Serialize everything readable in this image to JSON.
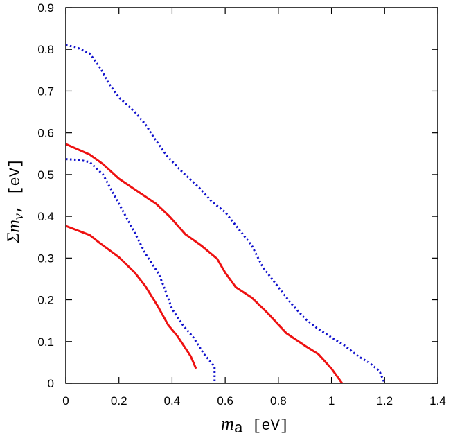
{
  "chart_data": {
    "type": "line",
    "xlabel": {
      "math": "m",
      "sub": "a",
      "unit": " [eV]"
    },
    "ylabel": {
      "math": "Σm",
      "sub": "ν",
      "unit": ", [eV]"
    },
    "xlim": [
      0,
      1.4
    ],
    "ylim": [
      0,
      0.9
    ],
    "xticks": [
      0,
      0.2,
      0.4,
      0.6,
      0.8,
      1,
      1.2,
      1.4
    ],
    "xtick_labels": [
      "0",
      "0.2",
      "0.4",
      "0.6",
      "0.8",
      "1",
      "1.2",
      "1.4"
    ],
    "yticks": [
      0,
      0.1,
      0.2,
      0.3,
      0.4,
      0.5,
      0.6,
      0.7,
      0.8,
      0.9
    ],
    "ytick_labels": [
      "0",
      "0.1",
      "0.2",
      "0.3",
      "0.4",
      "0.5",
      "0.6",
      "0.7",
      "0.8",
      "0.9"
    ],
    "grid": false,
    "legend": "none",
    "series": [
      {
        "color": "#ee1111",
        "style": "solid",
        "x": [
          0,
          0.09,
          0.13,
          0.2,
          0.26,
          0.3,
          0.345,
          0.385,
          0.42,
          0.47,
          0.49
        ],
        "y": [
          0.377,
          0.355,
          0.335,
          0.302,
          0.265,
          0.232,
          0.186,
          0.14,
          0.113,
          0.065,
          0.035
        ]
      },
      {
        "color": "#ee1111",
        "style": "solid",
        "x": [
          0,
          0.09,
          0.14,
          0.2,
          0.27,
          0.34,
          0.39,
          0.45,
          0.51,
          0.57,
          0.6,
          0.64,
          0.7,
          0.76,
          0.83,
          0.9,
          0.95,
          1.0,
          1.04
        ],
        "y": [
          0.573,
          0.548,
          0.525,
          0.49,
          0.46,
          0.43,
          0.4,
          0.357,
          0.33,
          0.298,
          0.265,
          0.23,
          0.205,
          0.168,
          0.12,
          0.09,
          0.07,
          0.035,
          0
        ]
      },
      {
        "color": "#1111cc",
        "style": "dotted",
        "x": [
          0,
          0.05,
          0.09,
          0.14,
          0.2,
          0.26,
          0.3,
          0.35,
          0.37,
          0.4,
          0.44,
          0.48,
          0.52,
          0.56,
          0.56
        ],
        "y": [
          0.537,
          0.535,
          0.53,
          0.5,
          0.43,
          0.36,
          0.31,
          0.262,
          0.23,
          0.178,
          0.14,
          0.11,
          0.07,
          0.04,
          0
        ]
      },
      {
        "color": "#1111cc",
        "style": "dotted",
        "x": [
          0,
          0.04,
          0.09,
          0.13,
          0.16,
          0.2,
          0.26,
          0.3,
          0.33,
          0.38,
          0.44,
          0.5,
          0.55,
          0.6,
          0.65,
          0.7,
          0.74,
          0.8,
          0.85,
          0.9,
          0.95,
          1.0,
          1.05,
          1.1,
          1.14,
          1.18,
          1.2
        ],
        "y": [
          0.81,
          0.805,
          0.79,
          0.755,
          0.72,
          0.685,
          0.65,
          0.62,
          0.59,
          0.545,
          0.505,
          0.47,
          0.435,
          0.41,
          0.37,
          0.33,
          0.28,
          0.23,
          0.19,
          0.155,
          0.13,
          0.11,
          0.09,
          0.065,
          0.05,
          0.03,
          0
        ]
      }
    ]
  }
}
